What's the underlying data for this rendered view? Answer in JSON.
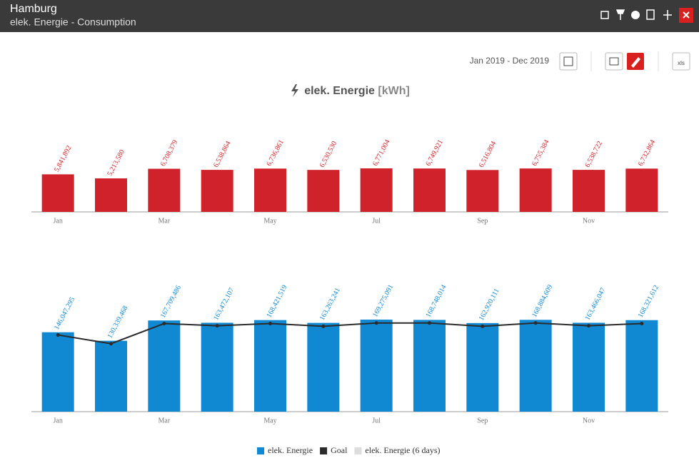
{
  "header": {
    "title": "Hamburg",
    "subtitle": "elek. Energie - Consumption"
  },
  "toolbar": {
    "date_range": "Jan 2019 - Dec 2019",
    "export_label": "xls"
  },
  "chart_title": {
    "title": "elek. Energie",
    "unit": "[kWh]"
  },
  "chart_data": [
    {
      "type": "bar",
      "categories": [
        "Jan",
        null,
        "Mar",
        null,
        "May",
        null,
        "Jul",
        null,
        "Sep",
        null,
        "Nov",
        null
      ],
      "values": [
        5841892,
        5213580,
        6708379,
        6538864,
        6736861,
        6530530,
        6771004,
        6749921,
        6516804,
        6755384,
        6538722,
        6732864
      ],
      "value_labels": [
        "5,841,892",
        "5,213,580",
        "6,708,379",
        "6,538,864",
        "6,736,861",
        "6,530,530",
        "6,771,004",
        "6,749,921",
        "6,516,804",
        "6,755,384",
        "6,538,722",
        "6,732,864"
      ],
      "color": "#d0222a"
    },
    {
      "type": "bar",
      "categories": [
        "Jan",
        null,
        "Mar",
        null,
        "May",
        null,
        "Jul",
        null,
        "Sep",
        null,
        "Nov",
        null
      ],
      "series": [
        {
          "name": "elek. Energie",
          "color": "#1189d2",
          "type": "bar",
          "values": [
            146047295,
            130339468,
            167709486,
            163472107,
            168421519,
            163263241,
            169275091,
            168748014,
            162920111,
            168884609,
            163466047,
            168321612
          ],
          "value_labels": [
            "146,047,295",
            "130,339,468",
            "167,709,486",
            "163,472,107",
            "168,421,519",
            "163,263,241",
            "169,275,091",
            "168,748,014",
            "162,920,111",
            "168,884,609",
            "163,466,047",
            "168,321,612"
          ]
        },
        {
          "name": "Goal",
          "color": "#2b2b2b",
          "type": "line",
          "values": [
            141000000,
            125000000,
            162000000,
            158000000,
            162000000,
            157000000,
            163000000,
            163000000,
            157000000,
            163000000,
            158000000,
            162000000
          ]
        }
      ],
      "inactive_series": {
        "name": "elek. Energie (6 days)",
        "color": "#dddddd"
      }
    }
  ]
}
